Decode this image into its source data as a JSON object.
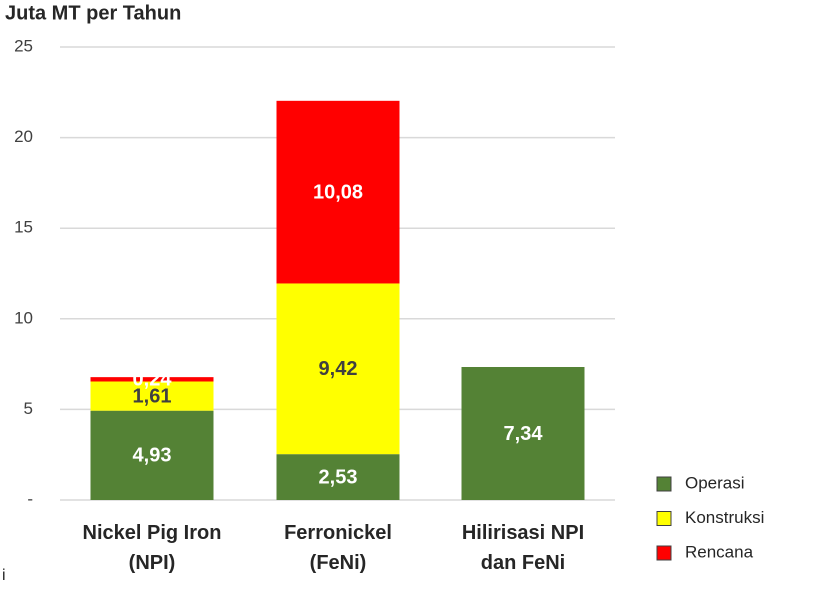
{
  "chart_data": {
    "type": "stacked_bar",
    "title": "Juta MT per Tahun",
    "note": "i",
    "categories": [
      "Nickel Pig Iron\n(NPI)",
      "Ferronickel\n(FeNi)",
      "Hilirisasi NPI\ndan FeNi"
    ],
    "series": [
      {
        "name": "Operasi",
        "color": "#548235",
        "label_color": "#ffffff",
        "values": [
          4.93,
          2.53,
          7.34
        ],
        "value_labels": [
          "4,93",
          "2,53",
          "7,34"
        ]
      },
      {
        "name": "Konstruksi",
        "color": "#ffff00",
        "label_color": "#404040",
        "values": [
          1.61,
          9.42,
          null
        ],
        "value_labels": [
          "1,61",
          "9,42",
          null
        ]
      },
      {
        "name": "Rencana",
        "color": "#ff0000",
        "label_color": "#ffffff",
        "values": [
          0.24,
          10.08,
          null
        ],
        "value_labels": [
          "0,24",
          "10,08",
          null
        ]
      }
    ],
    "ylim": [
      0,
      25
    ],
    "yticks": [
      {
        "value": 0,
        "label": "-"
      },
      5,
      10,
      15,
      20,
      25
    ],
    "grid": true,
    "legend": "bottom-right"
  }
}
